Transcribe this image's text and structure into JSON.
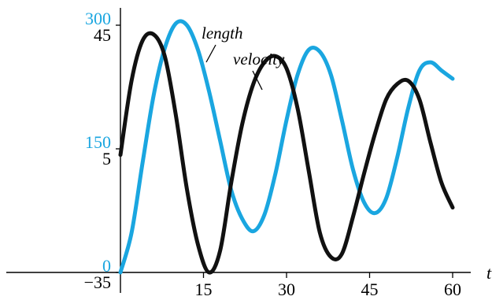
{
  "chart_data": {
    "type": "line",
    "xlabel": "t",
    "x_ticks": [
      15,
      30,
      45,
      60
    ],
    "xlim": [
      0,
      60
    ],
    "y_left_ticks": [
      {
        "value": 45,
        "label": "45"
      },
      {
        "value": 5,
        "label": "5"
      },
      {
        "value": -35,
        "label": "−35"
      }
    ],
    "y_left_lim": [
      -35,
      45
    ],
    "y_right_ticks": [
      {
        "value": 300,
        "label": "300"
      },
      {
        "value": 150,
        "label": "150"
      },
      {
        "value": 0,
        "label": "0"
      }
    ],
    "y_right_lim": [
      0,
      300
    ],
    "grid": false,
    "legend": "none",
    "series": [
      {
        "name": "length",
        "axis": "right",
        "color": "#1aa6e0",
        "x": [
          0,
          2,
          4,
          6,
          8,
          10,
          12,
          14,
          16,
          18,
          20,
          22,
          24,
          26,
          28,
          30,
          32,
          34,
          36,
          38,
          40,
          42,
          44,
          46,
          48,
          50,
          52,
          54,
          56,
          58,
          60
        ],
        "values": [
          0,
          48,
          133,
          215,
          272,
          302,
          300,
          270,
          220,
          160,
          100,
          65,
          50,
          70,
          120,
          185,
          240,
          270,
          268,
          240,
          185,
          125,
          85,
          72,
          90,
          140,
          200,
          245,
          255,
          245,
          235
        ]
      },
      {
        "name": "velocity",
        "axis": "left",
        "color": "#111111",
        "x": [
          0,
          2,
          4,
          6,
          8,
          10,
          12,
          14,
          16,
          18,
          20,
          22,
          24,
          26,
          28,
          30,
          32,
          34,
          36,
          38,
          40,
          42,
          44,
          46,
          48,
          50,
          52,
          54,
          56,
          58,
          60
        ],
        "values": [
          3,
          27,
          40,
          42,
          35,
          16,
          -8,
          -26,
          -35,
          -28,
          -6,
          13,
          26,
          33,
          35,
          31,
          18,
          -2,
          -22,
          -30,
          -29,
          -17,
          -3,
          10,
          21,
          26,
          27,
          21,
          7,
          -6,
          -14
        ]
      }
    ],
    "annotations": [
      {
        "text": "length"
      },
      {
        "text": "velocity"
      }
    ]
  },
  "colors": {
    "length": "#1aa6e0",
    "velocity": "#111111",
    "axis": "#000000"
  }
}
